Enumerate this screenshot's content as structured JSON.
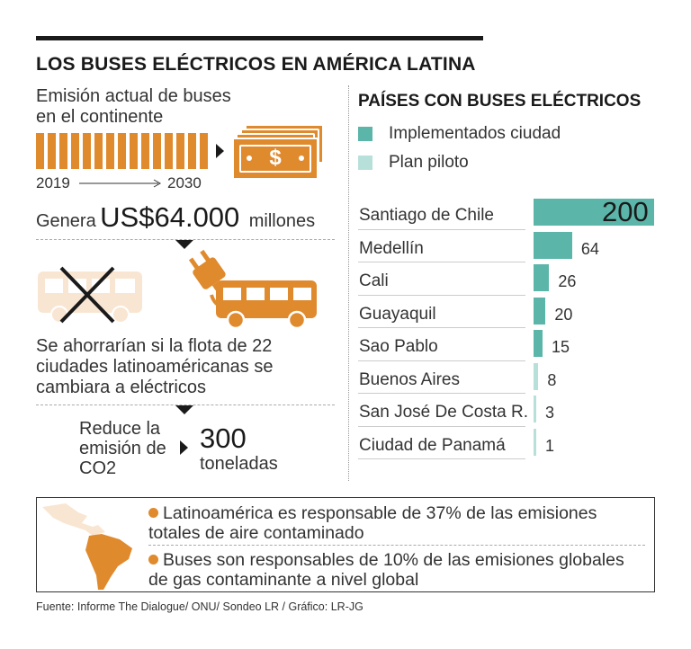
{
  "title": "LOS BUSES ELÉCTRICOS EN AMÉRICA LATINA",
  "left": {
    "emission_text": "Emisión actual de buses en el continente",
    "year_start": "2019",
    "year_end": "2030",
    "money_symbol": "$",
    "genera_label": "Genera",
    "amount": "US$64.000",
    "amount_unit": "millones",
    "savings_text": "Se ahorrarían si la flota de 22 ciudades latinoaméricanas se cambiara a eléctricos",
    "reduce_text": "Reduce la emisión de CO2",
    "reduction_value": "300",
    "reduction_unit": "toneladas"
  },
  "chart_data": {
    "type": "bar",
    "orientation": "horizontal",
    "title": "PAÍSES CON BUSES ELÉCTRICOS",
    "legend": [
      {
        "label": "Implementados ciudad",
        "color": "#5bb5a9"
      },
      {
        "label": "Plan piloto",
        "color": "#b7e0da"
      }
    ],
    "categories": [
      "Santiago de Chile",
      "Medellín",
      "Cali",
      "Guayaquil",
      "Sao Pablo",
      "Buenos Aires",
      "San José De Costa R.",
      "Ciudad de Panamá"
    ],
    "values": [
      200,
      64,
      26,
      20,
      15,
      8,
      3,
      1
    ],
    "series_by_item": [
      "Implementados ciudad",
      "Implementados ciudad",
      "Implementados ciudad",
      "Implementados ciudad",
      "Implementados ciudad",
      "Plan piloto",
      "Plan piloto",
      "Plan piloto"
    ],
    "xlim": [
      0,
      200
    ],
    "grid": false
  },
  "facts": [
    "Latinoamérica es responsable de 37% de las emisiones totales de aire contaminado",
    "Buses son responsables de 10% de las emisiones globales de gas contaminante a nivel global"
  ],
  "source": "Fuente: Informe The Dialogue/ ONU/ Sondeo LR  / Gráfico: LR-JG",
  "colors": {
    "accent_orange": "#e08a2e",
    "light_orange": "#f9e6d2",
    "teal": "#5bb5a9",
    "light_teal": "#b7e0da"
  },
  "icons": [
    "money-bills-icon",
    "bus-crossed-out-icon",
    "electric-plug-icon",
    "electric-bus-icon",
    "latin-america-map-icon"
  ]
}
